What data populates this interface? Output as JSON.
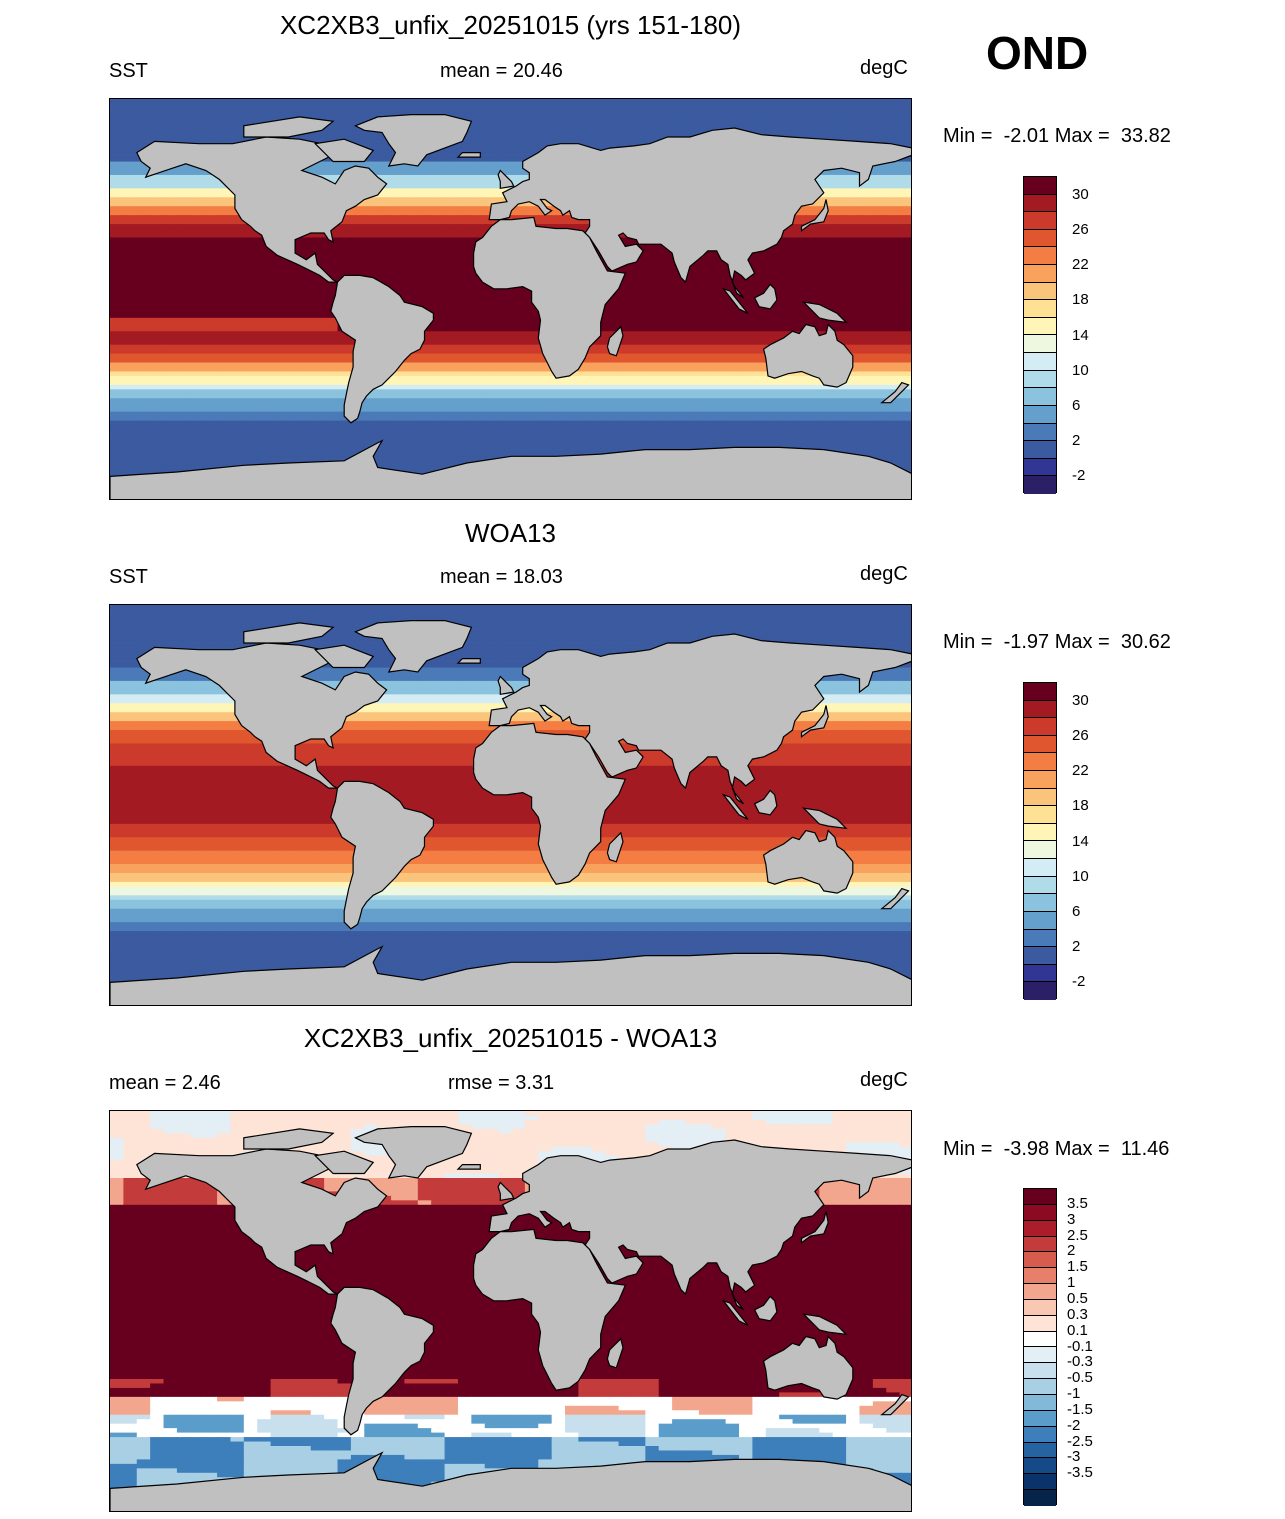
{
  "season": "OND",
  "panels": [
    {
      "id": "model",
      "title": "XC2XB3_unfix_20251015 (yrs 151-180)",
      "left_label": "SST",
      "center_label": "mean =  20.46",
      "units": "degC",
      "minmax": "Min =  -2.01 Max =  33.82",
      "field": "sst_model"
    },
    {
      "id": "obs",
      "title": "WOA13",
      "left_label": "SST",
      "center_label": "mean =  18.03",
      "units": "degC",
      "minmax": "Min =  -1.97 Max =  30.62",
      "field": "sst_obs"
    },
    {
      "id": "diff",
      "title": "XC2XB3_unfix_20251015 - WOA13",
      "left_label": "mean =   2.46",
      "center_label": "rmse =   3.31",
      "units": "degC",
      "minmax": "Min =  -3.98 Max =  11.46",
      "field": "sst_diff"
    }
  ],
  "colorbars": {
    "sst": {
      "colors": [
        "#67001f",
        "#a31a22",
        "#cc3a2c",
        "#e0572f",
        "#f37d43",
        "#f8a25e",
        "#fbc47d",
        "#fee195",
        "#fff5b6",
        "#eef7e0",
        "#d4ecf4",
        "#b0dbe9",
        "#8bc2de",
        "#659fcc",
        "#4a7bb8",
        "#3b5aa0",
        "#313695",
        "#2b1f66"
      ],
      "tick_labels": [
        "30",
        "26",
        "22",
        "18",
        "14",
        "10",
        "6",
        "2",
        "-2"
      ]
    },
    "diff": {
      "colors": [
        "#67001f",
        "#8c0b23",
        "#ab1d2b",
        "#c33b3a",
        "#d65c4d",
        "#e6806a",
        "#f2a68d",
        "#f8c8b2",
        "#fde4d6",
        "#ffffff",
        "#e3eef5",
        "#c8e0ee",
        "#a8cfe4",
        "#82b9d9",
        "#5a9dca",
        "#3d7fba",
        "#2563a3",
        "#154a88",
        "#0b336b",
        "#062447"
      ],
      "tick_labels": [
        "3.5",
        "3",
        "2.5",
        "2",
        "1.5",
        "1",
        "0.5",
        "0.3",
        "0.1",
        "-0.1",
        "-0.3",
        "-0.5",
        "-1",
        "-1.5",
        "-2",
        "-2.5",
        "-3",
        "-3.5"
      ]
    }
  }
}
